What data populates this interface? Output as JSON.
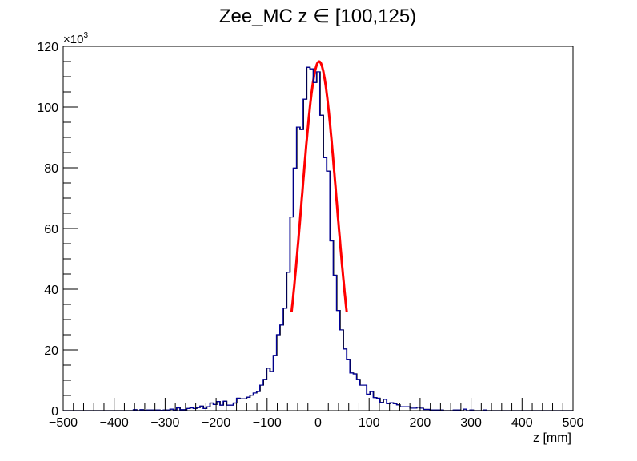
{
  "chart_data": {
    "type": "bar",
    "histogram": true,
    "title": "Zee_MC z ∈ [100,125)",
    "xlabel": "z [mm]",
    "ylabel": "",
    "y_multiplier_label": "×10",
    "y_multiplier_exp": "3",
    "xlim": [
      -500,
      500
    ],
    "ylim": [
      0,
      120
    ],
    "x_ticks": [
      "−500",
      "−400",
      "−300",
      "−200",
      "−100",
      "0",
      "100",
      "200",
      "300",
      "400",
      "500"
    ],
    "x_tick_values": [
      -500,
      -400,
      -300,
      -200,
      -100,
      0,
      100,
      200,
      300,
      400,
      500
    ],
    "y_ticks": [
      "0",
      "20",
      "40",
      "60",
      "80",
      "100",
      "120"
    ],
    "y_tick_values": [
      0,
      20,
      40,
      60,
      80,
      100,
      120
    ],
    "bins": 150,
    "series": [
      {
        "name": "histogram",
        "color": "#000099",
        "values": [
          0,
          0,
          0,
          0,
          0,
          0,
          0,
          0,
          0,
          0,
          0,
          0,
          0,
          0,
          0,
          0,
          0,
          0,
          0,
          0,
          0,
          0.3,
          0,
          0.3,
          0.1,
          0.2,
          0.2,
          0.2,
          0.2,
          0.1,
          0.2,
          0.2,
          0.5,
          0.2,
          0.9,
          0.3,
          0.3,
          0.7,
          0.9,
          0.7,
          1.0,
          1.5,
          0.7,
          1.3,
          2.5,
          2.0,
          3.0,
          1.8,
          3.1,
          1.8,
          1.8,
          2.5,
          4.1,
          3.9,
          3.9,
          4.4,
          5.1,
          5.8,
          6.3,
          8.4,
          10.3,
          14.0,
          12.9,
          18.2,
          25.0,
          28.2,
          33.7,
          45.6,
          63.8,
          79.9,
          93.4,
          92.6,
          102.6,
          113.1,
          112.6,
          108.1,
          111.6,
          97.3,
          83.3,
          78.9,
          55.9,
          44.6,
          33.0,
          26.6,
          20.3,
          16.9,
          12.4,
          12.1,
          10.3,
          8.4,
          8.4,
          5.4,
          6.3,
          4.3,
          4.1,
          2.7,
          3.7,
          2.3,
          2.6,
          2.3,
          1.9,
          1.3,
          1.3,
          1.3,
          0.8,
          0.8,
          1.1,
          0.8,
          0.4,
          0.4,
          0.2,
          0.2,
          0.2,
          0.2,
          0,
          0,
          0,
          0.2,
          0.2,
          0,
          0.5,
          0,
          0.2,
          0,
          0,
          0,
          0.2,
          0,
          0,
          0,
          0,
          0,
          0,
          0,
          0,
          0,
          0,
          0,
          0,
          0,
          0,
          0,
          0,
          0,
          0,
          0,
          0,
          0,
          0,
          0,
          0,
          0,
          0
        ]
      },
      {
        "name": "gaussian-fit",
        "type": "line",
        "color": "#ff0000",
        "function": "gaussian",
        "amplitude": 115,
        "mean": 2,
        "sigma": 34,
        "range": [
          -52,
          56
        ]
      }
    ],
    "grid": false,
    "legend": "none"
  }
}
